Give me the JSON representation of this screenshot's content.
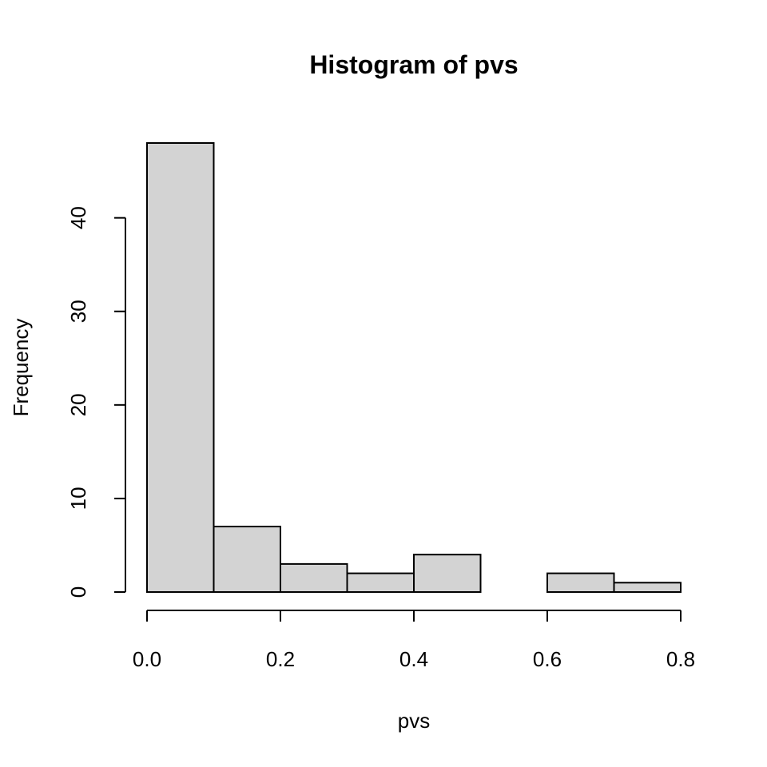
{
  "chart_data": {
    "type": "bar",
    "title": "Histogram of pvs",
    "xlabel": "pvs",
    "ylabel": "Frequency",
    "bins": [
      {
        "from": 0.0,
        "to": 0.1,
        "count": 48
      },
      {
        "from": 0.1,
        "to": 0.2,
        "count": 7
      },
      {
        "from": 0.2,
        "to": 0.3,
        "count": 3
      },
      {
        "from": 0.3,
        "to": 0.4,
        "count": 2
      },
      {
        "from": 0.4,
        "to": 0.5,
        "count": 4
      },
      {
        "from": 0.5,
        "to": 0.6,
        "count": 0
      },
      {
        "from": 0.6,
        "to": 0.7,
        "count": 2
      },
      {
        "from": 0.7,
        "to": 0.8,
        "count": 1
      }
    ],
    "xlim": [
      0,
      0.8
    ],
    "ylim": [
      0,
      48
    ],
    "xticks": [
      0.0,
      0.2,
      0.4,
      0.6,
      0.8
    ],
    "xtick_labels": [
      "0.0",
      "0.2",
      "0.4",
      "0.6",
      "0.8"
    ],
    "yticks": [
      0,
      10,
      20,
      30,
      40
    ],
    "ytick_labels": [
      "0",
      "10",
      "20",
      "30",
      "40"
    ],
    "grid": false,
    "bar_color": "#d3d3d3",
    "edge_color": "#000000"
  }
}
